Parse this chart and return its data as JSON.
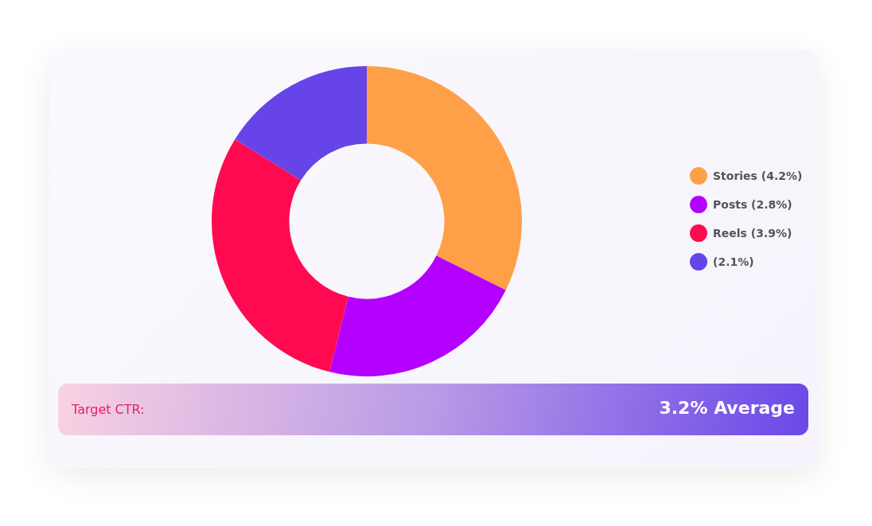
{
  "chart_data": {
    "type": "donut",
    "categories": [
      "Stories (4.2%)",
      "Posts (2.8%)",
      "Reels (3.9%)",
      "(2.1%)"
    ],
    "values": [
      4.2,
      2.8,
      3.9,
      2.1
    ],
    "colors": [
      "#ffa048",
      "#b300ff",
      "#ff0a50",
      "#6644e8"
    ],
    "legend": "right",
    "annotations": [
      "Target CTR:",
      "3.2% Average"
    ]
  }
}
